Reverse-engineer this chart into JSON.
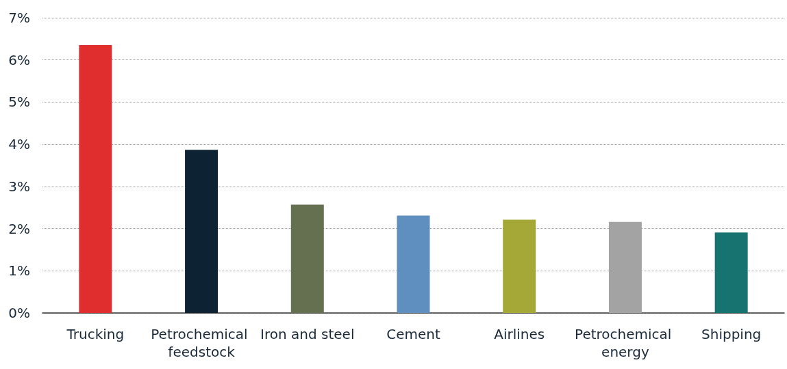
{
  "chart_data": {
    "type": "bar",
    "categories": [
      "Trucking",
      "Petrochemical feedstock",
      "Iron and steel",
      "Cement",
      "Airlines",
      "Petrochemical energy",
      "Shipping"
    ],
    "values": [
      6.35,
      3.87,
      2.57,
      2.31,
      2.21,
      2.16,
      1.91
    ],
    "colors": [
      "#e02d2d",
      "#0d2233",
      "#647050",
      "#5f8fbf",
      "#a5a836",
      "#a3a3a3",
      "#17736f"
    ],
    "ylim": [
      0,
      7
    ],
    "yticks": [
      {
        "value": 0,
        "label": "0%"
      },
      {
        "value": 1,
        "label": "1%"
      },
      {
        "value": 2,
        "label": "2%"
      },
      {
        "value": 3,
        "label": "3%"
      },
      {
        "value": 4,
        "label": "4%"
      },
      {
        "value": 5,
        "label": "5%"
      },
      {
        "value": 6,
        "label": "6%"
      },
      {
        "value": 7,
        "label": "7%"
      }
    ],
    "grid": "y"
  }
}
